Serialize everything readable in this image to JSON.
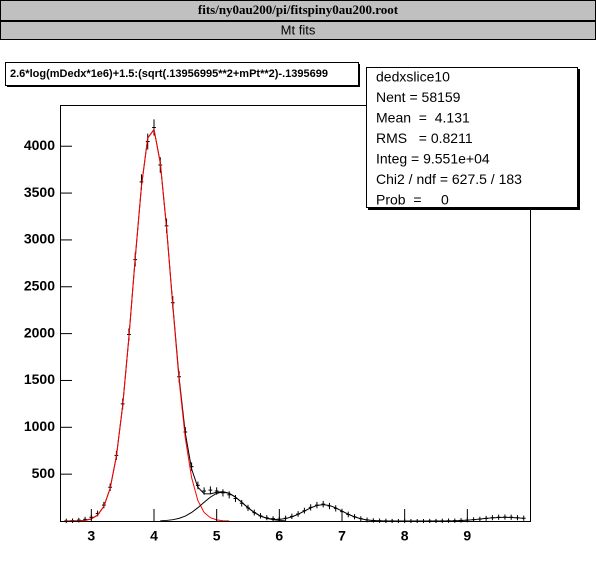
{
  "chart_data": {
    "type": "histogram_fit",
    "file": "fits/ny0au200/pi/fitspiny0au200.root",
    "canvas_title": "Mt fits",
    "title": "2.6*log(mDedx*1e6)+1.5:(sqrt(.13956995**2+mPt**2)-.1395699",
    "stats": [
      "dedxslice10",
      "Nent = 58159",
      "Mean  =  4.131",
      "RMS   = 0.8211",
      "Integ = 9.551e+04",
      "Chi2 / ndf = 627.5 / 183",
      "Prob  =     0"
    ],
    "xlim": [
      2.5,
      10
    ],
    "ylim": [
      0,
      4440
    ],
    "xticks": [
      3,
      4,
      5,
      6,
      7,
      8,
      9
    ],
    "yticks": [
      500,
      1000,
      1500,
      2000,
      2500,
      3000,
      3500,
      4000
    ],
    "series": [
      {
        "style": "points",
        "color": "#000000",
        "x": [
          2.6,
          2.7,
          2.8,
          2.9,
          3.0,
          3.1,
          3.2,
          3.3,
          3.4,
          3.5,
          3.6,
          3.7,
          3.8,
          3.9,
          4.0,
          4.1,
          4.2,
          4.3,
          4.4,
          4.5,
          4.6,
          4.7,
          4.8,
          4.9,
          5.0,
          5.1,
          5.2,
          5.3,
          5.4,
          5.5,
          5.6,
          5.7,
          5.8,
          5.9,
          6.0,
          6.1,
          6.2,
          6.3,
          6.4,
          6.5,
          6.6,
          6.7,
          6.8,
          6.9,
          7.0,
          7.1,
          7.2,
          7.3,
          7.4,
          7.5,
          7.6,
          7.7,
          7.8,
          7.9,
          8.0,
          8.1,
          8.2,
          8.3,
          8.4,
          8.5,
          8.6,
          8.7,
          8.8,
          8.9,
          9.0,
          9.1,
          9.2,
          9.3,
          9.4,
          9.5,
          9.6,
          9.7,
          9.8,
          9.9
        ],
        "values": [
          2,
          4,
          9,
          18,
          40,
          80,
          170,
          360,
          700,
          1250,
          1990,
          2790,
          3620,
          4050,
          4200,
          3800,
          3150,
          2330,
          1540,
          950,
          580,
          380,
          320,
          330,
          320,
          300,
          280,
          240,
          190,
          140,
          90,
          55,
          35,
          25,
          20,
          30,
          50,
          75,
          110,
          145,
          170,
          180,
          160,
          135,
          100,
          70,
          45,
          25,
          12,
          6,
          3,
          2,
          1,
          0,
          0,
          0,
          0,
          0,
          1,
          1,
          2,
          3,
          4,
          7,
          10,
          15,
          20,
          28,
          35,
          40,
          42,
          40,
          35,
          30
        ]
      },
      {
        "style": "line",
        "color": "#000000",
        "x": [
          2.6,
          2.7,
          2.8,
          2.9,
          3.0,
          3.1,
          3.2,
          3.3,
          3.4,
          3.5,
          3.6,
          3.7,
          3.8,
          3.9,
          4.0,
          4.1,
          4.2,
          4.3,
          4.4,
          4.5,
          4.6,
          4.7,
          4.8,
          4.9,
          5.0,
          5.1,
          5.2,
          5.3,
          5.4,
          5.5,
          5.6,
          5.7,
          5.8,
          5.9,
          6.0,
          6.1,
          6.2,
          6.3,
          6.4,
          6.5,
          6.6,
          6.7,
          6.8,
          6.9,
          7.0,
          7.1,
          7.2,
          7.3,
          7.4,
          7.5,
          7.6,
          7.7,
          7.8,
          7.9,
          8.0,
          8.1,
          8.2,
          8.3,
          8.4,
          8.5,
          8.6,
          8.7,
          8.8,
          8.9,
          9.0,
          9.1,
          9.2,
          9.3,
          9.4,
          9.5,
          9.6,
          9.7,
          9.8,
          9.9
        ],
        "values": [
          0,
          1,
          2,
          7,
          23,
          63,
          156,
          348,
          691,
          1231,
          1963,
          2802,
          3575,
          4087,
          4179,
          3825,
          3136,
          2307,
          1532,
          936,
          555,
          360,
          291,
          290,
          307,
          313,
          296,
          255,
          200,
          142,
          91,
          53,
          30,
          19,
          17,
          26,
          44,
          72,
          106,
          140,
          166,
          175,
          166,
          140,
          106,
          72,
          44,
          24,
          11,
          5,
          2,
          0,
          0,
          0,
          0,
          0,
          0,
          0,
          0,
          0,
          0,
          0,
          2,
          5,
          9,
          14,
          21,
          28,
          34,
          38,
          40,
          38,
          34,
          28
        ]
      },
      {
        "style": "line",
        "color": "#ff0000",
        "x": [
          2.6,
          2.7,
          2.8,
          2.9,
          3.0,
          3.1,
          3.2,
          3.3,
          3.4,
          3.5,
          3.6,
          3.7,
          3.8,
          3.9,
          4.0,
          4.1,
          4.2,
          4.3,
          4.4,
          4.5,
          4.6,
          4.7,
          4.8,
          4.9,
          5.0,
          5.1,
          5.2
        ],
        "values": [
          0,
          1,
          2,
          7,
          23,
          63,
          156,
          348,
          691,
          1231,
          1963,
          2802,
          3575,
          4087,
          4179,
          3823,
          3130,
          2293,
          1504,
          883,
          464,
          218,
          91,
          35,
          12,
          3,
          1
        ]
      },
      {
        "style": "line",
        "color": "#000000",
        "x": [
          4.1,
          4.2,
          4.3,
          4.4,
          4.5,
          4.6,
          4.7,
          4.8,
          4.9,
          5.0,
          5.1,
          5.2,
          5.3,
          5.4,
          5.5,
          5.6,
          5.7,
          5.8,
          5.9,
          6.0,
          6.1
        ],
        "values": [
          2,
          6,
          14,
          28,
          53,
          91,
          142,
          200,
          255,
          295,
          310,
          295,
          255,
          200,
          142,
          91,
          53,
          28,
          14,
          6,
          2
        ]
      }
    ]
  }
}
